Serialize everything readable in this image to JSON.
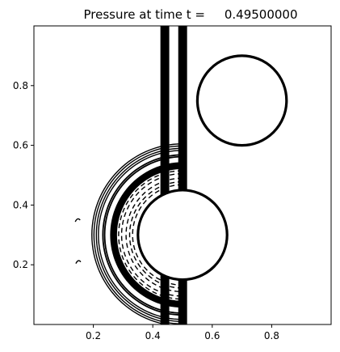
{
  "chart_data": {
    "type": "contour",
    "title": "Pressure at time t =     0.49500000",
    "xlabel": "",
    "ylabel": "",
    "xlim": [
      0.0,
      1.0
    ],
    "ylim": [
      0.0,
      1.0
    ],
    "x_ticks": [
      0.2,
      0.4,
      0.6,
      0.8
    ],
    "x_tick_labels": [
      "0.2",
      "0.4",
      "0.6",
      "0.8"
    ],
    "y_ticks": [
      0.2,
      0.4,
      0.6,
      0.8
    ],
    "y_tick_labels": [
      "0.2",
      "0.4",
      "0.6",
      "0.8"
    ],
    "grid": false,
    "legend": "none",
    "colors": {
      "contour": "#000000",
      "background": "#ffffff"
    },
    "obstacles": [
      {
        "name": "upper-cylinder",
        "cx": 0.7,
        "cy": 0.75,
        "r": 0.15
      },
      {
        "name": "lower-cylinder",
        "cx": 0.5,
        "cy": 0.3,
        "r": 0.15
      }
    ],
    "vertical_band": {
      "x_positions": [
        0.43,
        0.437,
        0.444,
        0.451,
        0.49,
        0.497,
        0.504,
        0.511
      ]
    },
    "curved_waves": {
      "center_x": 0.5,
      "center_y": 0.3,
      "outer_solid_radii": [
        0.305,
        0.298,
        0.29,
        0.283
      ],
      "middle_solid_radii": [
        0.268,
        0.262
      ],
      "inner_solid_radii": [
        0.24,
        0.236,
        0.232,
        0.228,
        0.224
      ],
      "dashed_radii": [
        0.215,
        0.205,
        0.19,
        0.178,
        0.168
      ],
      "angle_range_deg": [
        90,
        270
      ]
    }
  }
}
